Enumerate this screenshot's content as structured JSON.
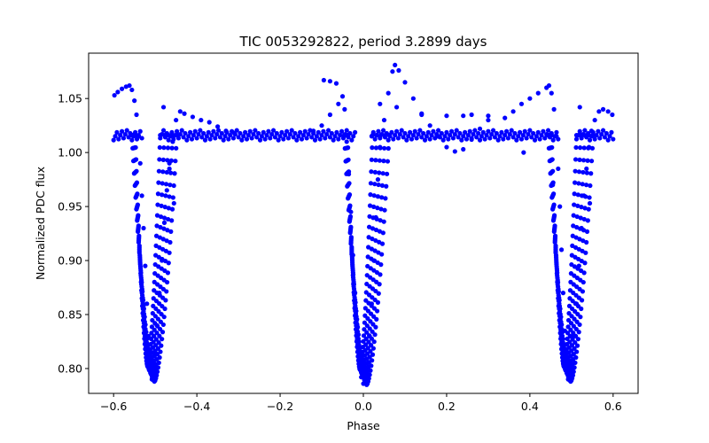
{
  "chart_data": {
    "type": "scatter",
    "title": "TIC 0053292822, period 3.2899 days",
    "xlabel": "Phase",
    "ylabel": "Normalized PDC flux",
    "xlim": [
      -0.66,
      0.66
    ],
    "ylim": [
      0.777,
      1.092
    ],
    "xticks": [
      -0.6,
      -0.4,
      -0.2,
      0.0,
      0.2,
      0.4,
      0.6
    ],
    "xtick_labels": [
      "−0.6",
      "−0.4",
      "−0.2",
      "0.0",
      "0.2",
      "0.4",
      "0.6"
    ],
    "yticks": [
      0.8,
      0.85,
      0.9,
      0.95,
      1.0,
      1.05
    ],
    "ytick_labels": [
      "0.80",
      "0.85",
      "0.90",
      "0.95",
      "1.00",
      "1.05"
    ],
    "grid": false,
    "marker_color": "#0000ff",
    "series": [
      {
        "baseline_flux": 1.016,
        "eclipses": [
          {
            "center_phase": -0.51,
            "min_flux": 0.788
          },
          {
            "center_phase": 0.0,
            "min_flux": 0.785
          },
          {
            "center_phase": 0.49,
            "min_flux": 0.788
          }
        ],
        "points": [
          [
            -0.598,
            1.053
          ],
          [
            -0.59,
            1.056
          ],
          [
            -0.58,
            1.059
          ],
          [
            -0.57,
            1.061
          ],
          [
            -0.562,
            1.062
          ],
          [
            -0.556,
            1.058
          ],
          [
            -0.55,
            1.048
          ],
          [
            -0.545,
            1.035
          ],
          [
            -0.54,
            1.015
          ],
          [
            -0.536,
            0.99
          ],
          [
            -0.532,
            0.96
          ],
          [
            -0.528,
            0.93
          ],
          [
            -0.524,
            0.895
          ],
          [
            -0.52,
            0.86
          ],
          [
            -0.516,
            0.83
          ],
          [
            -0.512,
            0.8
          ],
          [
            -0.508,
            0.79
          ],
          [
            -0.504,
            0.795
          ],
          [
            -0.5,
            0.815
          ],
          [
            -0.496,
            0.84
          ],
          [
            -0.49,
            0.87
          ],
          [
            -0.484,
            0.9
          ],
          [
            -0.478,
            0.935
          ],
          [
            -0.472,
            0.965
          ],
          [
            -0.466,
            0.99
          ],
          [
            -0.458,
            1.01
          ],
          [
            -0.45,
            1.03
          ],
          [
            -0.44,
            1.038
          ],
          [
            -0.43,
            1.036
          ],
          [
            -0.41,
            1.033
          ],
          [
            -0.39,
            1.03
          ],
          [
            -0.37,
            1.028
          ],
          [
            -0.35,
            1.024
          ],
          [
            -0.33,
            1.02
          ],
          [
            -0.31,
            1.018
          ],
          [
            -0.48,
            1.042
          ],
          [
            -0.455,
            0.953
          ],
          [
            -0.466,
            0.985
          ],
          [
            -0.12,
            1.02
          ],
          [
            -0.1,
            1.025
          ],
          [
            -0.08,
            1.035
          ],
          [
            -0.06,
            1.045
          ],
          [
            -0.05,
            1.052
          ],
          [
            -0.045,
            1.04
          ],
          [
            -0.04,
            1.01
          ],
          [
            -0.035,
            0.98
          ],
          [
            -0.03,
            0.945
          ],
          [
            -0.025,
            0.905
          ],
          [
            -0.02,
            0.87
          ],
          [
            -0.015,
            0.84
          ],
          [
            -0.01,
            0.81
          ],
          [
            -0.005,
            0.792
          ],
          [
            0.0,
            0.786
          ],
          [
            0.005,
            0.79
          ],
          [
            0.01,
            0.805
          ],
          [
            0.015,
            0.83
          ],
          [
            0.02,
            0.86
          ],
          [
            0.025,
            0.9
          ],
          [
            0.03,
            0.94
          ],
          [
            0.035,
            0.975
          ],
          [
            0.04,
            1.005
          ],
          [
            0.05,
            1.03
          ],
          [
            0.06,
            1.055
          ],
          [
            0.07,
            1.075
          ],
          [
            0.076,
            1.081
          ],
          [
            0.085,
            1.076
          ],
          [
            0.1,
            1.065
          ],
          [
            0.12,
            1.05
          ],
          [
            0.14,
            1.035
          ],
          [
            0.16,
            1.025
          ],
          [
            0.18,
            1.015
          ],
          [
            0.2,
            1.005
          ],
          [
            0.22,
            1.001
          ],
          [
            0.24,
            1.003
          ],
          [
            0.26,
            1.012
          ],
          [
            0.28,
            1.022
          ],
          [
            0.3,
            1.03
          ],
          [
            0.04,
            1.045
          ],
          [
            0.08,
            1.042
          ],
          [
            0.14,
            1.036
          ],
          [
            0.2,
            1.034
          ],
          [
            0.24,
            1.034
          ],
          [
            0.26,
            1.035
          ],
          [
            0.3,
            1.034
          ],
          [
            0.34,
            1.032
          ],
          [
            0.36,
            1.038
          ],
          [
            0.38,
            1.045
          ],
          [
            0.4,
            1.05
          ],
          [
            0.42,
            1.055
          ],
          [
            0.44,
            1.06
          ],
          [
            0.446,
            1.062
          ],
          [
            0.452,
            1.055
          ],
          [
            0.458,
            1.04
          ],
          [
            0.464,
            1.015
          ],
          [
            0.468,
            0.985
          ],
          [
            0.472,
            0.95
          ],
          [
            0.476,
            0.91
          ],
          [
            0.48,
            0.87
          ],
          [
            0.484,
            0.835
          ],
          [
            0.488,
            0.805
          ],
          [
            0.492,
            0.79
          ],
          [
            0.496,
            0.792
          ],
          [
            0.5,
            0.805
          ],
          [
            0.506,
            0.83
          ],
          [
            0.512,
            0.86
          ],
          [
            0.518,
            0.895
          ],
          [
            0.524,
            0.93
          ],
          [
            0.53,
            0.96
          ],
          [
            0.536,
            0.985
          ],
          [
            0.542,
            1.005
          ],
          [
            0.548,
            1.02
          ],
          [
            0.556,
            1.03
          ],
          [
            0.566,
            1.038
          ],
          [
            0.576,
            1.04
          ],
          [
            0.588,
            1.038
          ],
          [
            0.598,
            1.035
          ],
          [
            0.52,
            1.042
          ],
          [
            0.544,
            0.953
          ],
          [
            -0.095,
            1.067
          ],
          [
            -0.08,
            1.066
          ],
          [
            -0.065,
            1.064
          ],
          [
            0.385,
            1.0
          ],
          [
            0.455,
            0.97
          ]
        ]
      }
    ]
  }
}
